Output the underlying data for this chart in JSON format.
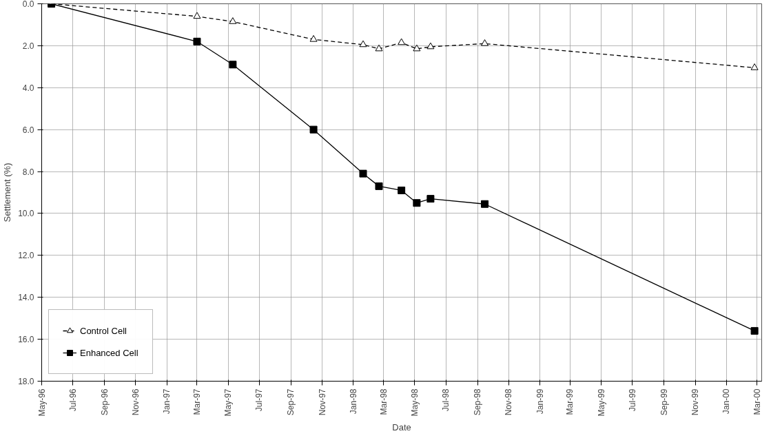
{
  "chart_data": {
    "type": "line",
    "xlabel": "Date",
    "ylabel": "Settlement (%)",
    "xlim": [
      "1996-05-01",
      "2000-03-10"
    ],
    "ylim": [
      18,
      0
    ],
    "xticks": [
      {
        "value": "1996-05-01",
        "label": "May-96"
      },
      {
        "value": "1996-07-01",
        "label": "Jul-96"
      },
      {
        "value": "1996-09-01",
        "label": "Sep-96"
      },
      {
        "value": "1996-11-01",
        "label": "Nov-96"
      },
      {
        "value": "1997-01-01",
        "label": "Jan-97"
      },
      {
        "value": "1997-03-01",
        "label": "Mar-97"
      },
      {
        "value": "1997-05-01",
        "label": "May-97"
      },
      {
        "value": "1997-07-01",
        "label": "Jul-97"
      },
      {
        "value": "1997-09-01",
        "label": "Sep-97"
      },
      {
        "value": "1997-11-01",
        "label": "Nov-97"
      },
      {
        "value": "1998-01-01",
        "label": "Jan-98"
      },
      {
        "value": "1998-03-01",
        "label": "Mar-98"
      },
      {
        "value": "1998-05-01",
        "label": "May-98"
      },
      {
        "value": "1998-07-01",
        "label": "Jul-98"
      },
      {
        "value": "1998-09-01",
        "label": "Sep-98"
      },
      {
        "value": "1998-11-01",
        "label": "Nov-98"
      },
      {
        "value": "1999-01-01",
        "label": "Jan-99"
      },
      {
        "value": "1999-03-01",
        "label": "Mar-99"
      },
      {
        "value": "1999-05-01",
        "label": "May-99"
      },
      {
        "value": "1999-07-01",
        "label": "Jul-99"
      },
      {
        "value": "1999-09-01",
        "label": "Sep-99"
      },
      {
        "value": "1999-11-01",
        "label": "Nov-99"
      },
      {
        "value": "2000-01-01",
        "label": "Jan-00"
      },
      {
        "value": "2000-03-01",
        "label": "Mar-00"
      }
    ],
    "yticks": [
      {
        "value": 0,
        "label": "0.0"
      },
      {
        "value": 2,
        "label": "2.0"
      },
      {
        "value": 4,
        "label": "4.0"
      },
      {
        "value": 6,
        "label": "6.0"
      },
      {
        "value": 8,
        "label": "8.0"
      },
      {
        "value": 10,
        "label": "10.0"
      },
      {
        "value": 12,
        "label": "12.0"
      },
      {
        "value": 14,
        "label": "14.0"
      },
      {
        "value": 16,
        "label": "16.0"
      },
      {
        "value": 18,
        "label": "18.0"
      }
    ],
    "grid": true,
    "legend": "bottom left",
    "series": [
      {
        "name": "Control Cell",
        "color": "#000000",
        "marker": "triangle",
        "line_style": "dashed",
        "x": [
          "1996-05-20",
          "1997-03-01",
          "1997-05-10",
          "1997-10-15",
          "1998-01-20",
          "1998-02-20",
          "1998-04-05",
          "1998-05-05",
          "1998-06-01",
          "1998-09-15",
          "2000-02-25"
        ],
        "values": [
          0,
          0.6,
          0.85,
          1.7,
          1.95,
          2.15,
          1.85,
          2.15,
          2.05,
          1.9,
          3.05
        ]
      },
      {
        "name": "Enhanced Cell",
        "color": "#000000",
        "marker": "square",
        "line_style": "solid",
        "x": [
          "1996-05-20",
          "1997-03-01",
          "1997-05-10",
          "1997-10-15",
          "1998-01-20",
          "1998-02-20",
          "1998-04-05",
          "1998-05-05",
          "1998-06-01",
          "1998-09-15",
          "2000-02-25"
        ],
        "values": [
          0,
          1.8,
          2.9,
          6.0,
          8.1,
          8.7,
          8.9,
          9.5,
          9.3,
          9.55,
          15.6
        ]
      }
    ]
  }
}
